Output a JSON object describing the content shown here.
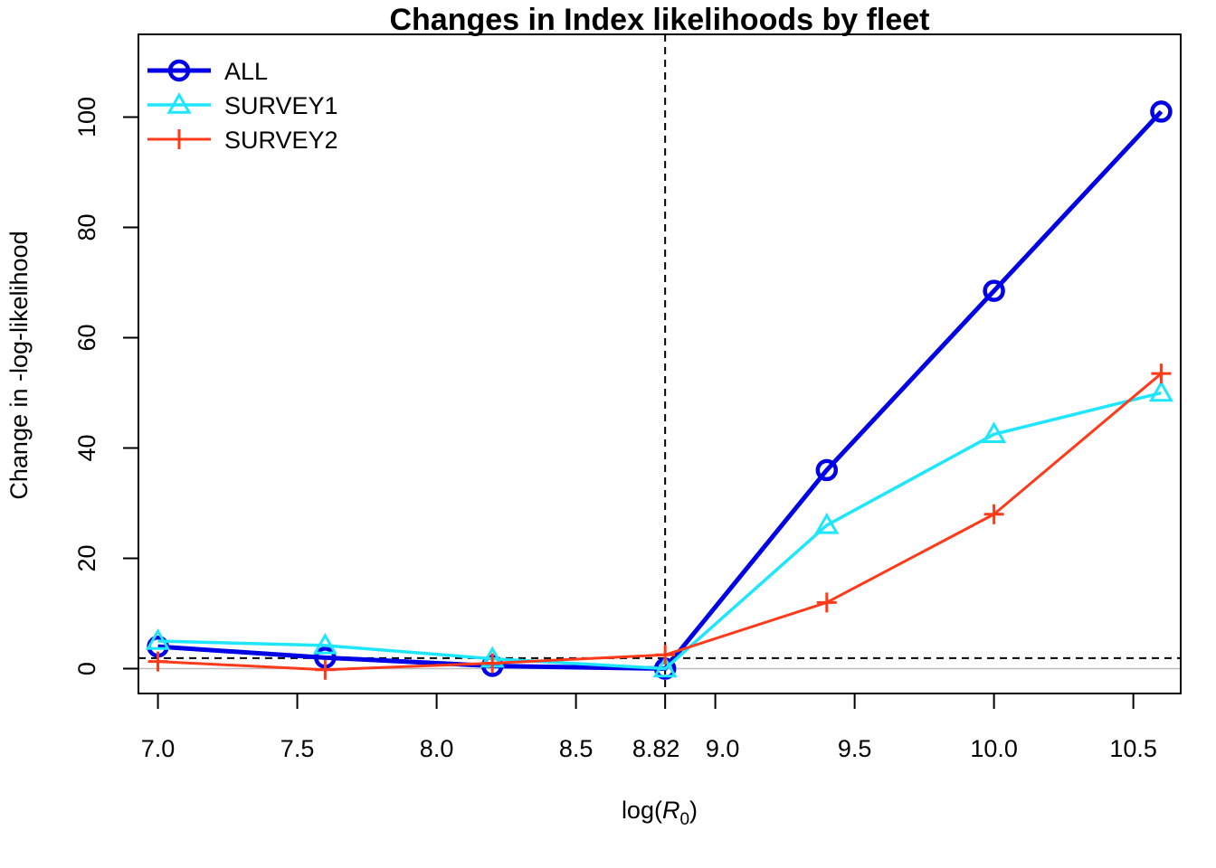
{
  "chart_data": {
    "type": "line",
    "title": "Changes in Index likelihoods by fleet",
    "xlabel_prefix": "log(",
    "xlabel_symbol": "R",
    "xlabel_subscript": "0",
    "xlabel_suffix": ")",
    "ylabel": "Change in -log-likelihood",
    "xlim": [
      6.93,
      10.67
    ],
    "ylim": [
      -4.5,
      115
    ],
    "x_ticks": [
      7.0,
      7.5,
      8.0,
      8.5,
      8.82,
      9.0,
      9.5,
      10.0,
      10.5
    ],
    "x_tick_labels": [
      "7.0",
      "7.5",
      "8.0",
      "8.5",
      "8.82",
      "9.0",
      "9.5",
      "10.0",
      "10.5"
    ],
    "y_ticks": [
      0,
      20,
      40,
      60,
      80,
      100
    ],
    "y_tick_labels": [
      "0",
      "20",
      "40",
      "60",
      "80",
      "100"
    ],
    "x": [
      7.0,
      7.6,
      8.2,
      8.82,
      9.4,
      10.0,
      10.6
    ],
    "series": [
      {
        "name": "ALL",
        "color": "#0000e6",
        "marker": "circle",
        "values": [
          4.0,
          2.0,
          0.5,
          0.0,
          36.0,
          68.5,
          101.0
        ]
      },
      {
        "name": "SURVEY1",
        "color": "#1ee6ff",
        "marker": "triangle",
        "values": [
          5.0,
          4.2,
          1.8,
          0.0,
          26.0,
          42.5,
          50.0
        ]
      },
      {
        "name": "SURVEY2",
        "color": "#ff3a1a",
        "marker": "plus",
        "values": [
          1.3,
          -0.2,
          1.0,
          2.5,
          12.0,
          28.0,
          53.5
        ]
      }
    ],
    "reference_vline_x": 8.82,
    "reference_hline_y": 1.92,
    "zero_line_y": 0,
    "legend_position": "top-left",
    "grid": false
  }
}
